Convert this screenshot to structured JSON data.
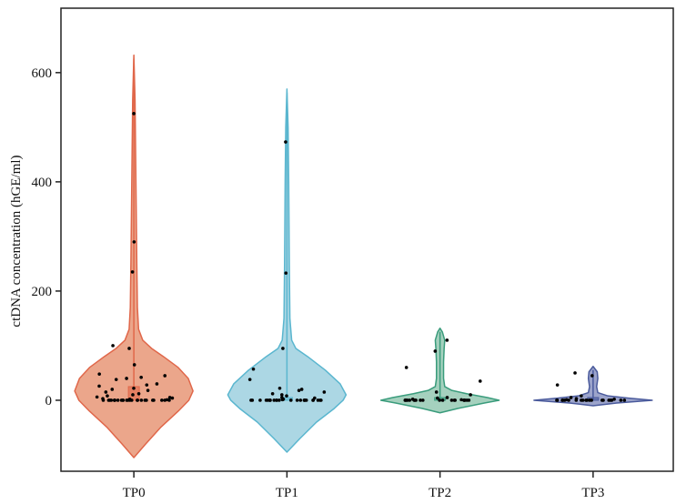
{
  "chart_data": {
    "type": "violin",
    "title": "",
    "xlabel": "",
    "ylabel": "ctDNA concentration (hGE/ml)",
    "ylim": [
      -130,
      718
    ],
    "yticks": [
      0,
      200,
      400,
      600
    ],
    "categories": [
      "TP0",
      "TP1",
      "TP2",
      "TP3"
    ],
    "grid": false,
    "series": [
      {
        "category": "TP0",
        "fill": "#eba68b",
        "stroke": "#e0674a",
        "range": [
          -105,
          632
        ],
        "density": [
          [
            -105,
            0
          ],
          [
            -80,
            0.2
          ],
          [
            -50,
            0.45
          ],
          [
            -20,
            0.75
          ],
          [
            0,
            0.93
          ],
          [
            17,
            1
          ],
          [
            40,
            0.92
          ],
          [
            60,
            0.75
          ],
          [
            80,
            0.5
          ],
          [
            95,
            0.3
          ],
          [
            110,
            0.15
          ],
          [
            130,
            0.08
          ],
          [
            170,
            0.06
          ],
          [
            250,
            0.05
          ],
          [
            350,
            0.04
          ],
          [
            450,
            0.03
          ],
          [
            550,
            0.02
          ],
          [
            632,
            0
          ]
        ],
        "box": {
          "q1": 0,
          "q3": 25,
          "whisker_high": 632
        },
        "points": [
          525,
          290,
          235,
          100,
          95,
          65,
          48,
          45,
          42,
          40,
          38,
          30,
          28,
          26,
          22,
          20,
          18,
          15,
          12,
          10,
          8,
          6,
          5,
          4,
          3,
          2,
          1,
          0,
          0,
          0,
          0,
          0,
          0,
          0,
          0,
          0,
          0,
          0,
          0,
          0,
          0,
          0,
          0,
          0,
          0,
          0,
          0,
          0,
          0,
          0,
          0,
          0
        ]
      },
      {
        "category": "TP1",
        "fill": "#acd7e4",
        "stroke": "#5ab6cf",
        "range": [
          -95,
          570
        ],
        "density": [
          [
            -95,
            0
          ],
          [
            -70,
            0.22
          ],
          [
            -40,
            0.5
          ],
          [
            -15,
            0.8
          ],
          [
            0,
            0.95
          ],
          [
            10,
            1
          ],
          [
            30,
            0.9
          ],
          [
            55,
            0.65
          ],
          [
            80,
            0.35
          ],
          [
            95,
            0.15
          ],
          [
            110,
            0.08
          ],
          [
            150,
            0.05
          ],
          [
            250,
            0.04
          ],
          [
            400,
            0.03
          ],
          [
            500,
            0.02
          ],
          [
            570,
            0
          ]
        ],
        "box": {
          "q1": 0,
          "q3": 5,
          "whisker_high": 570
        },
        "points": [
          473,
          233,
          95,
          57,
          38,
          22,
          20,
          18,
          15,
          12,
          10,
          8,
          5,
          4,
          2,
          1,
          0,
          0,
          0,
          0,
          0,
          0,
          0,
          0,
          0,
          0,
          0,
          0,
          0,
          0,
          0,
          0,
          0,
          0,
          0,
          0,
          0,
          0,
          0,
          0
        ]
      },
      {
        "category": "TP2",
        "fill": "#a5d1be",
        "stroke": "#3a9c7c",
        "range": [
          -23,
          132
        ],
        "density": [
          [
            -23,
            0
          ],
          [
            -15,
            0.3
          ],
          [
            -5,
            0.75
          ],
          [
            0,
            1
          ],
          [
            5,
            0.8
          ],
          [
            12,
            0.45
          ],
          [
            18,
            0.2
          ],
          [
            25,
            0.08
          ],
          [
            40,
            0.06
          ],
          [
            70,
            0.06
          ],
          [
            95,
            0.07
          ],
          [
            110,
            0.08
          ],
          [
            125,
            0.04
          ],
          [
            132,
            0
          ]
        ],
        "box": {
          "q1": 0,
          "q3": 1,
          "whisker_high": 132
        },
        "points": [
          110,
          90,
          60,
          35,
          15,
          10,
          5,
          4,
          2,
          1,
          0,
          0,
          0,
          0,
          0,
          0,
          0,
          0,
          0,
          0,
          0,
          0,
          0,
          0,
          0,
          0,
          0,
          0,
          0,
          0
        ]
      },
      {
        "category": "TP3",
        "fill": "#9ca4cb",
        "stroke": "#4a5a9c",
        "range": [
          -10,
          62
        ],
        "density": [
          [
            -10,
            0
          ],
          [
            -5,
            0.4
          ],
          [
            0,
            1
          ],
          [
            4,
            0.6
          ],
          [
            8,
            0.25
          ],
          [
            14,
            0.08
          ],
          [
            25,
            0.06
          ],
          [
            40,
            0.08
          ],
          [
            52,
            0.07
          ],
          [
            62,
            0
          ]
        ],
        "box": {
          "q1": 0,
          "q3": 1,
          "whisker_high": 62
        },
        "points": [
          50,
          45,
          28,
          8,
          5,
          3,
          2,
          1,
          0,
          0,
          0,
          0,
          0,
          0,
          0,
          0,
          0,
          0,
          0,
          0,
          0,
          0,
          0,
          0,
          0,
          0,
          0,
          0
        ]
      }
    ]
  }
}
